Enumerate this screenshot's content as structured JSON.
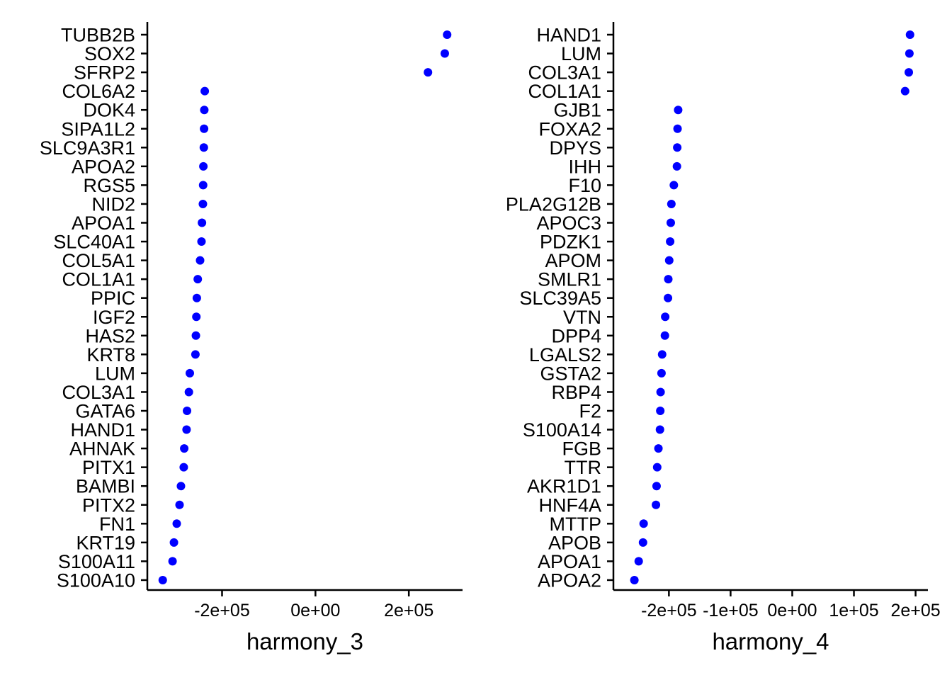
{
  "chart_data": [
    {
      "type": "scatter",
      "title": "",
      "xlabel": "harmony_3",
      "ylabel": "",
      "x_ticks": [
        -200000,
        0,
        200000
      ],
      "x_tick_labels": [
        "-2e+05",
        "0e+00",
        "2e+05"
      ],
      "xlim": [
        -360000,
        315000
      ],
      "point_color": "#0000FF",
      "genes": [
        "TUBB2B",
        "SOX2",
        "SFRP2",
        "COL6A2",
        "DOK4",
        "SIPA1L2",
        "SLC9A3R1",
        "APOA2",
        "RGS5",
        "NID2",
        "APOA1",
        "SLC40A1",
        "COL5A1",
        "COL1A1",
        "PPIC",
        "IGF2",
        "HAS2",
        "KRT8",
        "LUM",
        "COL3A1",
        "GATA6",
        "HAND1",
        "AHNAK",
        "PITX1",
        "BAMBI",
        "PITX2",
        "FN1",
        "KRT19",
        "S100A11",
        "S100A10"
      ],
      "values": [
        282000,
        277000,
        241000,
        -237000,
        -238000,
        -238500,
        -239000,
        -240000,
        -240500,
        -241000,
        -243000,
        -244000,
        -247000,
        -252000,
        -254000,
        -255000,
        -256000,
        -257000,
        -269000,
        -271000,
        -275000,
        -276000,
        -281000,
        -282000,
        -288000,
        -291000,
        -297000,
        -303000,
        -306000,
        -327000
      ]
    },
    {
      "type": "scatter",
      "title": "",
      "xlabel": "harmony_4",
      "ylabel": "",
      "x_ticks": [
        -200000,
        -100000,
        0,
        100000,
        200000
      ],
      "x_tick_labels": [
        "-2e+05",
        "-1e+05",
        "0e+00",
        "1e+05",
        "2e+05"
      ],
      "xlim": [
        -290000,
        220000
      ],
      "point_color": "#0000FF",
      "genes": [
        "HAND1",
        "LUM",
        "COL3A1",
        "COL1A1",
        "GJB1",
        "FOXA2",
        "DPYS",
        "IHH",
        "F10",
        "PLA2G12B",
        "APOC3",
        "PDZK1",
        "APOM",
        "SMLR1",
        "SLC39A5",
        "VTN",
        "DPP4",
        "LGALS2",
        "GSTA2",
        "RBP4",
        "F2",
        "S100A14",
        "FGB",
        "TTR",
        "AKR1D1",
        "HNF4A",
        "MTTP",
        "APOB",
        "APOA1",
        "APOA2"
      ],
      "values": [
        191000,
        190000,
        189000,
        183000,
        -185000,
        -186000,
        -186500,
        -187000,
        -192000,
        -196000,
        -197000,
        -198000,
        -199500,
        -201000,
        -201500,
        -206000,
        -206500,
        -211000,
        -212000,
        -213500,
        -214000,
        -214500,
        -217000,
        -219000,
        -220000,
        -221000,
        -241000,
        -242000,
        -249000,
        -256000
      ]
    }
  ]
}
